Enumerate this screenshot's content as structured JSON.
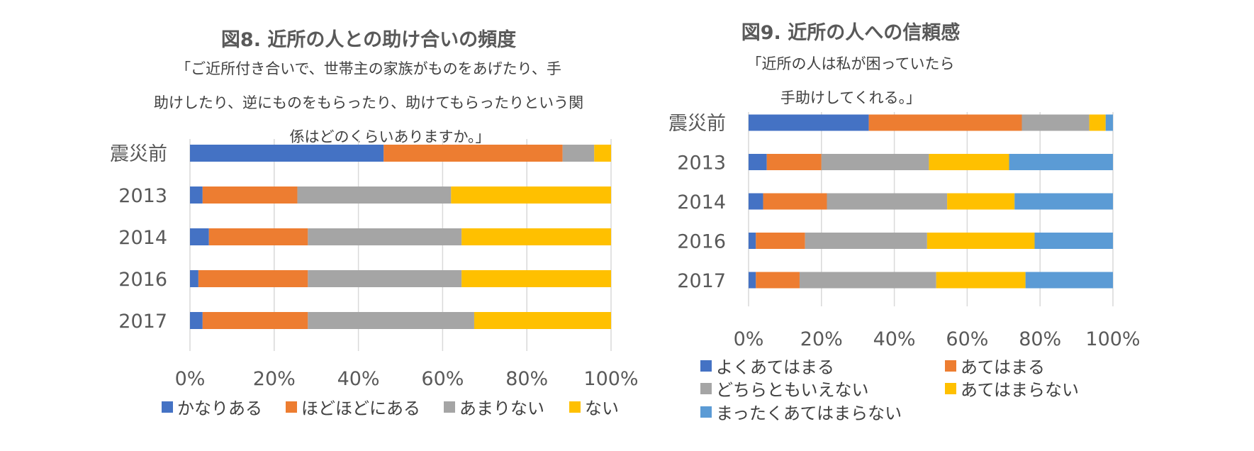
{
  "chart_data": [
    {
      "id": "fig8",
      "type": "bar",
      "orientation": "horizontal",
      "stacked": "percent",
      "title": "図8. 近所の人との助け合いの頻度",
      "subtitle_lines": [
        "「ご近所付き合いで、世帯主の家族がものをあげたり、手",
        "助けしたり、逆にものをもらったり、助けてもらったりという関",
        "係はどのくらいありますか。」"
      ],
      "categories": [
        "震災前",
        "2013",
        "2014",
        "2016",
        "2017"
      ],
      "series": [
        {
          "name": "かなりある",
          "color": "#4472C4",
          "values": [
            46,
            3,
            4.5,
            2,
            3
          ]
        },
        {
          "name": "ほどほどにある",
          "color": "#ED7D31",
          "values": [
            42.5,
            22.5,
            23.5,
            26,
            25
          ]
        },
        {
          "name": "あまりない",
          "color": "#A5A5A5",
          "values": [
            7.5,
            36.5,
            36.5,
            36.5,
            39.5
          ]
        },
        {
          "name": "ない",
          "color": "#FFC000",
          "values": [
            4,
            38,
            35.5,
            35.5,
            32.5
          ]
        }
      ],
      "x_ticks": [
        "0%",
        "20%",
        "40%",
        "60%",
        "80%",
        "100%"
      ],
      "xlim": [
        0,
        100
      ]
    },
    {
      "id": "fig9",
      "type": "bar",
      "orientation": "horizontal",
      "stacked": "percent",
      "title": "図9. 近所の人への信頼感",
      "subtitle_lines": [
        "「近所の人は私が困っていたら",
        "手助けしてくれる。」"
      ],
      "categories": [
        "震災前",
        "2013",
        "2014",
        "2016",
        "2017"
      ],
      "series": [
        {
          "name": "よくあてはまる",
          "color": "#4472C4",
          "values": [
            33,
            5,
            4,
            2,
            2
          ]
        },
        {
          "name": "あてはまる",
          "color": "#ED7D31",
          "values": [
            42,
            15,
            17.5,
            13.5,
            12
          ]
        },
        {
          "name": "どちらともいえない",
          "color": "#A5A5A5",
          "values": [
            18.5,
            29.5,
            33,
            33.5,
            37.5
          ]
        },
        {
          "name": "あてはまらない",
          "color": "#FFC000",
          "values": [
            4.5,
            22,
            18.5,
            29.5,
            24.5
          ]
        },
        {
          "name": "まったくあてはまらない",
          "color": "#5B9BD5",
          "values": [
            2,
            28.5,
            27,
            21.5,
            24
          ]
        }
      ],
      "x_ticks": [
        "0%",
        "20%",
        "40%",
        "60%",
        "80%",
        "100%"
      ],
      "xlim": [
        0,
        100
      ]
    }
  ]
}
